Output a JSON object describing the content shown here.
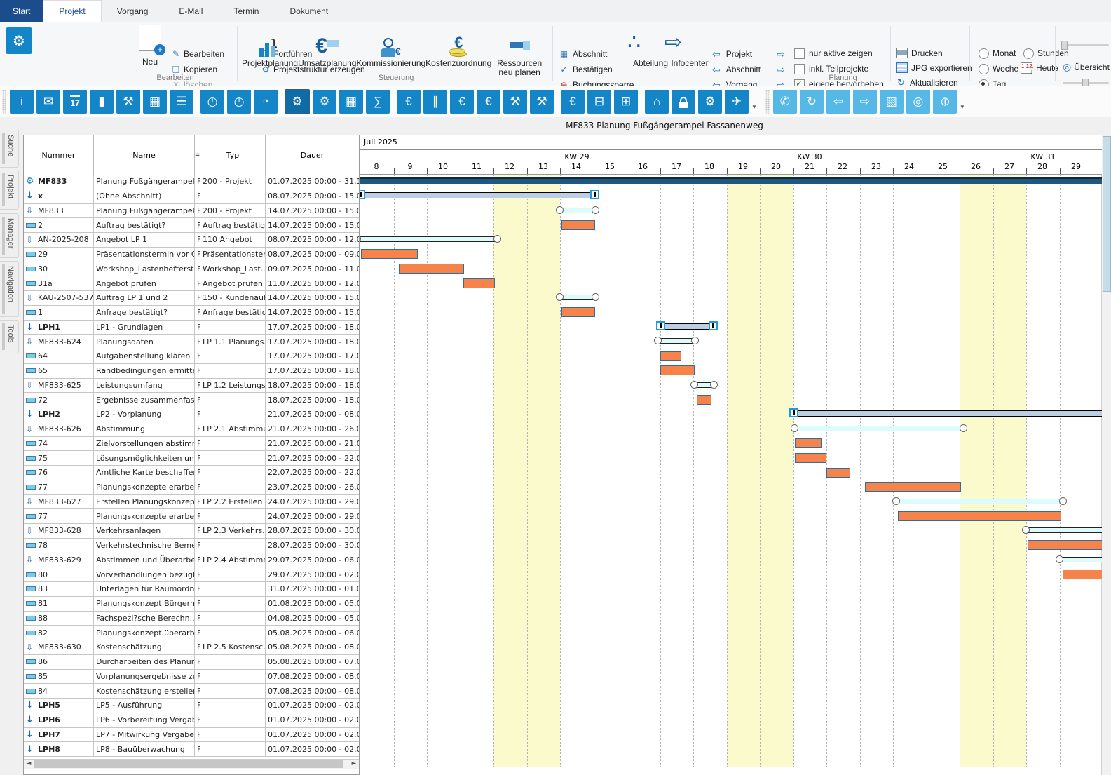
{
  "title": "MF833 Planung Fußgängerampel Fassanenweg",
  "tabs": [
    "Start",
    "Projekt",
    "Vorgang",
    "E-Mail",
    "Termin",
    "Dokument"
  ],
  "ribbon": {
    "group_labels": {
      "bearbeiten": "Bearbeiten",
      "steuerung": "Steuerung",
      "planung": "Planung"
    },
    "neu": "Neu",
    "edit_items": [
      {
        "label": "Bearbeiten",
        "icon": "edit-form-icon",
        "glyph": "✎",
        "disabled": false
      },
      {
        "label": "Kopieren",
        "icon": "copy-icon",
        "glyph": "❏",
        "disabled": false
      },
      {
        "label": "löschen",
        "icon": "delete-icon",
        "glyph": "✕",
        "disabled": true
      },
      {
        "label": "Fortführen",
        "icon": "continue-icon",
        "glyph": "❐",
        "disabled": false
      },
      {
        "label": "Projektstruktur erzeugen",
        "icon": "structure-gear-icon",
        "glyph": "⚙",
        "disabled": false
      }
    ],
    "steuerung_buttons": [
      "Projektplanung",
      "Umsatzplanung",
      "Kommissionierung",
      "Kostenzuordnung",
      "Ressourcen neu planen"
    ],
    "toggle_items": [
      {
        "label": "Abschnitt",
        "icon": "section-grid-icon",
        "glyph": "▦",
        "color": "#2e75b6"
      },
      {
        "label": "Bestätigen",
        "icon": "confirm-check-icon",
        "glyph": "✓",
        "color": "#2e75b6"
      },
      {
        "label": "Buchungssperre",
        "icon": "booking-lock-icon",
        "glyph": "⊖",
        "color": "#d03030"
      }
    ],
    "abteilung": "Abteilung",
    "infocenter": "Infocenter",
    "nav_rows": [
      "Projekt",
      "Abschnitt",
      "Vorgang"
    ],
    "checkboxes": [
      {
        "label": "nur aktive zeigen",
        "checked": false
      },
      {
        "label": "inkl. Teilprojekte",
        "checked": false
      },
      {
        "label": "eigene hervorheben",
        "checked": true
      }
    ],
    "action_buttons": [
      "Drucken",
      "JPG exportieren",
      "Aktualisieren"
    ],
    "zoom_radios": [
      {
        "label": "Monat",
        "selected": false
      },
      {
        "label": "Stunden",
        "selected": false
      },
      {
        "label": "Woche",
        "selected": false
      },
      {
        "label": "Tag",
        "selected": true
      }
    ],
    "heute": "Heute",
    "uebersicht": "Übersicht"
  },
  "toolbar": {
    "primary": [
      {
        "name": "info-icon",
        "glyph": "i"
      },
      {
        "name": "mail-icon",
        "glyph": "✉"
      },
      {
        "name": "calendar-17-icon",
        "glyph": "17",
        "cls": "cal"
      },
      {
        "name": "binder-icon",
        "glyph": "▮"
      },
      {
        "name": "user-tools-icon",
        "glyph": "⚒"
      },
      {
        "name": "company-icon",
        "glyph": "▦"
      },
      {
        "name": "print-list-icon",
        "glyph": "☰"
      },
      {
        "name": "time-add-icon",
        "glyph": "◴",
        "gap": true
      },
      {
        "name": "user-time-icon",
        "glyph": "◷"
      },
      {
        "name": "chart-time-icon",
        "glyph": "◔"
      },
      {
        "name": "project-structure-icon",
        "glyph": "⚙",
        "selected": true,
        "gap": true
      },
      {
        "name": "chart-settings-icon",
        "glyph": "⚙"
      },
      {
        "name": "schedule-grid-icon",
        "glyph": "▦"
      },
      {
        "name": "sum-icon",
        "glyph": "∑"
      },
      {
        "name": "euro-transfer-icon",
        "glyph": "€",
        "gap": true
      },
      {
        "name": "barcode-icon",
        "glyph": "∥"
      },
      {
        "name": "euro-coins-icon",
        "glyph": "€"
      },
      {
        "name": "euro-invoice-icon",
        "glyph": "€"
      },
      {
        "name": "user-barcode-icon",
        "glyph": "⚒"
      },
      {
        "name": "user-wrench-icon",
        "glyph": "⚒"
      },
      {
        "name": "euro-return-icon",
        "glyph": "€",
        "gap": true
      },
      {
        "name": "cart-icon",
        "glyph": "⊟"
      },
      {
        "name": "delivery-truck-icon",
        "glyph": "⊞"
      },
      {
        "name": "bank-euro-icon",
        "glyph": "⌂",
        "gap": true
      },
      {
        "name": "lock-icon",
        "glyph": "",
        "cls": "lock"
      },
      {
        "name": "gears-icon",
        "glyph": "⚙"
      },
      {
        "name": "plane-wrench-icon",
        "glyph": "✈"
      }
    ],
    "secondary": [
      {
        "name": "phone-icon",
        "glyph": "✆"
      },
      {
        "name": "document-refresh-icon",
        "glyph": "↻"
      },
      {
        "name": "arrow-left-icon",
        "glyph": "⇦"
      },
      {
        "name": "arrow-right-icon",
        "glyph": "⇨"
      },
      {
        "name": "image-report-icon",
        "glyph": "▧"
      },
      {
        "name": "magnifier-icon",
        "glyph": "◎"
      },
      {
        "name": "power-icon",
        "glyph": "⊖",
        "cls": "power"
      }
    ]
  },
  "sidetabs": [
    "Suche",
    "Projekt",
    "Manager",
    "Navigation",
    "Tools"
  ],
  "table": {
    "columns": {
      "nummer": "Nummer",
      "name": "Name",
      "flag": "=",
      "typ": "Typ",
      "dauer": "Dauer"
    },
    "rows": [
      {
        "icon": "gear",
        "num": "MF833",
        "bold": true,
        "name": "Planung Fußgängerampel ...",
        "flag": "F",
        "typ": "200 - Projekt",
        "dauer": "01.07.2025 00:00 - 31.12..."
      },
      {
        "icon": "asolid",
        "num": "x",
        "bold": true,
        "name": "(Ohne Abschnitt)",
        "flag": "F",
        "typ": "",
        "dauer": "08.07.2025 00:00 - 15.07..."
      },
      {
        "icon": "aoutline",
        "num": "MF833",
        "bold": false,
        "name": "Planung Fußgängerampel ...",
        "flag": "F",
        "typ": "200 - Projekt",
        "dauer": "14.07.2025 00:00 - 15.07..."
      },
      {
        "icon": "bar",
        "num": "2",
        "bold": false,
        "name": "Auftrag bestätigt?",
        "flag": "F",
        "typ": "Auftrag bestätigt?",
        "dauer": "14.07.2025 00:00 - 15.07..."
      },
      {
        "icon": "aoutline",
        "num": "AN-2025-208",
        "bold": false,
        "name": "Angebot LP 1",
        "flag": "F",
        "typ": "110 Angebot",
        "dauer": "08.07.2025 00:00 - 12.07..."
      },
      {
        "icon": "bar",
        "num": "29",
        "bold": false,
        "name": "Präsentationstermin vor Ort",
        "flag": "F",
        "typ": "Präsentationster...",
        "dauer": "08.07.2025 00:00 - 09.07..."
      },
      {
        "icon": "bar",
        "num": "30",
        "bold": false,
        "name": "Workshop_Lastenhefterst...",
        "flag": "F",
        "typ": "Workshop_Last...",
        "dauer": "09.07.2025 00:00 - 11.07..."
      },
      {
        "icon": "bar",
        "num": "31a",
        "bold": false,
        "name": "Angebot prüfen",
        "flag": "F",
        "typ": "Angebot prüfen",
        "dauer": "11.07.2025 00:00 - 12.07..."
      },
      {
        "icon": "aoutline",
        "num": "KAU-2507-537",
        "bold": false,
        "name": "Auftrag LP 1 und 2",
        "flag": "F",
        "typ": "150 - Kundenauf...",
        "dauer": "14.07.2025 00:00 - 15.07..."
      },
      {
        "icon": "bar",
        "num": "1",
        "bold": false,
        "name": "Anfrage bestätigt?",
        "flag": "F",
        "typ": "Anfrage bestätigt?",
        "dauer": "14.07.2025 00:00 - 15.07..."
      },
      {
        "icon": "asolid",
        "num": "LPH1",
        "bold": true,
        "name": "LP1 - Grundlagen",
        "flag": "F",
        "typ": "",
        "dauer": "17.07.2025 00:00 - 18.07..."
      },
      {
        "icon": "aoutline",
        "num": "MF833-624",
        "bold": false,
        "name": "Planungsdaten",
        "flag": "F",
        "typ": "LP 1.1 Planungs...",
        "dauer": "17.07.2025 00:00 - 18.07..."
      },
      {
        "icon": "bar",
        "num": "64",
        "bold": false,
        "name": "Aufgabenstellung klären",
        "flag": "F",
        "typ": "",
        "dauer": "17.07.2025 00:00 - 17.07..."
      },
      {
        "icon": "bar",
        "num": "65",
        "bold": false,
        "name": "Randbedingungen ermitteln",
        "flag": "F",
        "typ": "",
        "dauer": "17.07.2025 00:00 - 18.07..."
      },
      {
        "icon": "aoutline",
        "num": "MF833-625",
        "bold": false,
        "name": "Leistungsumfang",
        "flag": "F",
        "typ": "LP 1.2 Leistungs...",
        "dauer": "18.07.2025 00:00 - 18.07..."
      },
      {
        "icon": "bar",
        "num": "72",
        "bold": false,
        "name": "Ergebnisse zusammenfass...",
        "flag": "F",
        "typ": "",
        "dauer": "18.07.2025 00:00 - 18.07..."
      },
      {
        "icon": "asolid",
        "num": "LPH2",
        "bold": true,
        "name": "LP2 - Vorplanung",
        "flag": "F",
        "typ": "",
        "dauer": "21.07.2025 00:00 - 08.08..."
      },
      {
        "icon": "aoutline",
        "num": "MF833-626",
        "bold": false,
        "name": "Abstimmung",
        "flag": "F",
        "typ": "LP 2.1 Abstimmu...",
        "dauer": "21.07.2025 00:00 - 26.07..."
      },
      {
        "icon": "bar",
        "num": "74",
        "bold": false,
        "name": "Zielvorstellungen abstimmen",
        "flag": "F",
        "typ": "",
        "dauer": "21.07.2025 00:00 - 21.07..."
      },
      {
        "icon": "bar",
        "num": "75",
        "bold": false,
        "name": "Lösungsmöglichkeiten unt...",
        "flag": "F",
        "typ": "",
        "dauer": "21.07.2025 00:00 - 22.07..."
      },
      {
        "icon": "bar",
        "num": "76",
        "bold": false,
        "name": "Amtliche Karte beschaffen...",
        "flag": "F",
        "typ": "",
        "dauer": "22.07.2025 00:00 - 22.07..."
      },
      {
        "icon": "bar",
        "num": "77",
        "bold": false,
        "name": "Planungskonzepte erarbei...",
        "flag": "F",
        "typ": "",
        "dauer": "23.07.2025 00:00 - 26.07..."
      },
      {
        "icon": "aoutline",
        "num": "MF833-627",
        "bold": false,
        "name": "Erstellen Planungskonzept",
        "flag": "F",
        "typ": "LP 2.2 Erstellen ...",
        "dauer": "24.07.2025 00:00 - 29.07..."
      },
      {
        "icon": "bar",
        "num": "77",
        "bold": false,
        "name": "Planungskonzepte erarbei...",
        "flag": "F",
        "typ": "",
        "dauer": "24.07.2025 00:00 - 29.07..."
      },
      {
        "icon": "aoutline",
        "num": "MF833-628",
        "bold": false,
        "name": "Verkehrsanlagen",
        "flag": "F",
        "typ": "LP 2.3 Verkehrs...",
        "dauer": "28.07.2025 00:00 - 30.07..."
      },
      {
        "icon": "bar",
        "num": "78",
        "bold": false,
        "name": "Verkehrstechnische Beme...",
        "flag": "F",
        "typ": "",
        "dauer": "28.07.2025 00:00 - 30.07..."
      },
      {
        "icon": "aoutline",
        "num": "MF833-629",
        "bold": false,
        "name": "Abstimmen und Überarbeit...",
        "flag": "F",
        "typ": "LP 2.4 Abstimme...",
        "dauer": "29.07.2025 00:00 - 06.08..."
      },
      {
        "icon": "bar",
        "num": "80",
        "bold": false,
        "name": "Vorverhandlungen bezügli...",
        "flag": "F",
        "typ": "",
        "dauer": "29.07.2025 00:00 - 02.08..."
      },
      {
        "icon": "bar",
        "num": "83",
        "bold": false,
        "name": "Unterlagen für Raumordnu...",
        "flag": "F",
        "typ": "",
        "dauer": "31.07.2025 00:00 - 01.08..."
      },
      {
        "icon": "bar",
        "num": "81",
        "bold": false,
        "name": "Planungskonzept  Bürgern...",
        "flag": "F",
        "typ": "",
        "dauer": "01.08.2025 00:00 - 05.08..."
      },
      {
        "icon": "bar",
        "num": "88",
        "bold": false,
        "name": "Fachspezi?sche Berechn...",
        "flag": "F",
        "typ": "",
        "dauer": "04.08.2025 00:00 - 05.08..."
      },
      {
        "icon": "bar",
        "num": "82",
        "bold": false,
        "name": "Planungskonzept überarb...",
        "flag": "F",
        "typ": "",
        "dauer": "05.08.2025 00:00 - 06.08..."
      },
      {
        "icon": "aoutline",
        "num": "MF833-630",
        "bold": false,
        "name": "Kostenschätzung",
        "flag": "F",
        "typ": "LP 2.5 Kostensc...",
        "dauer": "05.08.2025 00:00 - 08.08..."
      },
      {
        "icon": "bar",
        "num": "86",
        "bold": false,
        "name": "Durcharbeiten des Planun...",
        "flag": "F",
        "typ": "",
        "dauer": "05.08.2025 00:00 - 07.08..."
      },
      {
        "icon": "bar",
        "num": "85",
        "bold": false,
        "name": "Vorplanungsergebnisse zu...",
        "flag": "F",
        "typ": "",
        "dauer": "07.08.2025 00:00 - 08.08..."
      },
      {
        "icon": "bar",
        "num": "84",
        "bold": false,
        "name": "Kostenschätzung erstellen",
        "flag": "F",
        "typ": "",
        "dauer": "07.08.2025 00:00 - 08.08..."
      },
      {
        "icon": "asolid",
        "num": "LPH5",
        "bold": true,
        "name": "LP5 - Ausführung",
        "flag": "F",
        "typ": "",
        "dauer": "01.07.2025 00:00 - 02.07..."
      },
      {
        "icon": "asolid",
        "num": "LPH6",
        "bold": true,
        "name": "LP6 - Vorbereitung Vergabe",
        "flag": "F",
        "typ": "",
        "dauer": "01.07.2025 00:00 - 02.07..."
      },
      {
        "icon": "asolid",
        "num": "LPH7",
        "bold": true,
        "name": "LP7 - Mitwirkung Vergabe",
        "flag": "F",
        "typ": "",
        "dauer": "01.07.2025 00:00 - 02.07..."
      },
      {
        "icon": "asolid",
        "num": "LPH8",
        "bold": true,
        "name": "LP8 - Bauüberwachung",
        "flag": "F",
        "typ": "",
        "dauer": "01.07.2025 00:00 - 02.07..."
      }
    ]
  },
  "gantt": {
    "month": "Juli 2025",
    "first_day": 8,
    "last_day": 29,
    "weeks": [
      {
        "label": "KW 29",
        "center_day": 6.5
      },
      {
        "label": "KW 30",
        "center_day": 13.5
      },
      {
        "label": "KW 31",
        "center_day": 20.5
      }
    ],
    "weekend_bands": [
      [
        4,
        6
      ],
      [
        11,
        13
      ],
      [
        18,
        20
      ]
    ],
    "colors": {
      "task": "#f6834a",
      "task_border": "#2e6da0",
      "summary_fill": "#ddfbfb",
      "project": "#20577f",
      "selected_fill": "#bccfe2",
      "weekend": "#fbfacd",
      "handle_blue": "#1d9cd9"
    },
    "bars": [
      {
        "row": 0,
        "type": "project",
        "start": -0.1,
        "end": 22.6
      },
      {
        "row": 1,
        "type": "selected",
        "start": 0.0,
        "end": 7.05
      },
      {
        "row": 2,
        "type": "summary",
        "start": 6.0,
        "end": 7.05
      },
      {
        "row": 3,
        "type": "task",
        "start": 6.05,
        "end": 7.05
      },
      {
        "row": 4,
        "type": "summary",
        "start": -0.08,
        "end": 4.1
      },
      {
        "row": 5,
        "type": "task",
        "start": 0.02,
        "end": 1.73
      },
      {
        "row": 6,
        "type": "task",
        "start": 1.15,
        "end": 3.12
      },
      {
        "row": 7,
        "type": "task",
        "start": 3.1,
        "end": 4.05
      },
      {
        "row": 8,
        "type": "summary",
        "start": 6.0,
        "end": 7.05
      },
      {
        "row": 9,
        "type": "task",
        "start": 6.05,
        "end": 7.05
      },
      {
        "row": 10,
        "type": "selected",
        "start": 9.0,
        "end": 10.6
      },
      {
        "row": 11,
        "type": "summary",
        "start": 8.95,
        "end": 10.05
      },
      {
        "row": 12,
        "type": "task",
        "start": 9.0,
        "end": 9.65
      },
      {
        "row": 13,
        "type": "task",
        "start": 9.0,
        "end": 10.05
      },
      {
        "row": 14,
        "type": "summary",
        "start": 10.05,
        "end": 10.62
      },
      {
        "row": 15,
        "type": "task",
        "start": 10.1,
        "end": 10.55
      },
      {
        "row": 16,
        "type": "selected",
        "start": 13.0,
        "end": 22.6,
        "clipR": true
      },
      {
        "row": 17,
        "type": "summary",
        "start": 13.05,
        "end": 18.1
      },
      {
        "row": 18,
        "type": "task",
        "start": 13.05,
        "end": 13.85
      },
      {
        "row": 19,
        "type": "task",
        "start": 13.05,
        "end": 14.0
      },
      {
        "row": 20,
        "type": "task",
        "start": 14.0,
        "end": 14.72
      },
      {
        "row": 21,
        "type": "task",
        "start": 15.15,
        "end": 18.05
      },
      {
        "row": 22,
        "type": "summary",
        "start": 16.1,
        "end": 21.1
      },
      {
        "row": 23,
        "type": "task",
        "start": 16.15,
        "end": 21.05
      },
      {
        "row": 24,
        "type": "summary",
        "start": 20.0,
        "end": 22.6,
        "clipR": true
      },
      {
        "row": 25,
        "type": "task",
        "start": 20.05,
        "end": 22.6,
        "clipR": true
      },
      {
        "row": 26,
        "type": "summary",
        "start": 21.0,
        "end": 22.6,
        "clipR": true
      },
      {
        "row": 27,
        "type": "task",
        "start": 21.1,
        "end": 22.6,
        "clipR": true
      }
    ]
  }
}
